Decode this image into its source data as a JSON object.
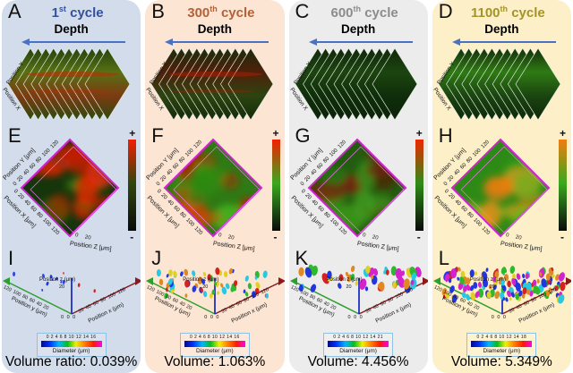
{
  "shared": {
    "axis_colors": {
      "y": "#2e9e2e",
      "x": "#8b1a1a",
      "z": "#2030c0"
    },
    "legend_gradient": [
      "#000a8c",
      "#0030ff",
      "#00b4ff",
      "#00c020",
      "#f0f000",
      "#ff8000",
      "#ff1800",
      "#ff00ff"
    ],
    "depth_arrow_color": "#4a72c4"
  },
  "columns": [
    {
      "bg": "#d3dcea",
      "letters": {
        "top": "A",
        "mid": "E",
        "bottom": "I"
      },
      "title": {
        "num": "1",
        "sup": "st",
        "rest": " cycle",
        "color": "#33519b"
      },
      "row1": {
        "depth_label": "Depth",
        "pos_y_label": "Position Y",
        "pos_x_label": "Position X",
        "slice_count": 11,
        "slice_stops": [
          "#26420f",
          "#577114",
          "#7d3a12",
          "#2c4a10"
        ],
        "streak": "#cc2200"
      },
      "row2": {
        "y_label": "Position Y [μm]",
        "x_label": "Position X [μm]",
        "z_label": "Position Z [μm]",
        "xy_ticks": "0 20 40 60 80 100 120",
        "z_ticks": "0 20",
        "base": "#15350b",
        "blob_palette": [
          "#e82400",
          "#c41f00",
          "#1d5c0e",
          "#3a7a14",
          "#e83010"
        ],
        "blob_count": 15,
        "blob_seed": 5,
        "outline": "#d024d0",
        "colorbar": {
          "plus": "+",
          "minus": "-",
          "top": "#f22000",
          "mid": "#31460f",
          "bottom": "#0a0a0a"
        }
      },
      "row3": {
        "y_label": "Position y (μm)",
        "x_label": "Position x (μm)",
        "z_label": "Position z (μm)",
        "y_ticks": "120 100 80 60 40 20",
        "x_ticks": "20 40 60 80 100 120",
        "z_tick": "20",
        "origin": "0 0 0",
        "particles": {
          "count": 13,
          "palette": [
            "#2236e0",
            "#2236e0",
            "#2a44e8",
            "#d42222"
          ],
          "min_size": 1.2,
          "max_size": 2.6,
          "y_min": 16,
          "y_max": 38,
          "seed": 7
        },
        "legend": {
          "ticks": "0 2 4 6 8 10 12 14 16",
          "label": "Diameter (μm)"
        },
        "volume": "Volume ratio: 0.039%"
      }
    },
    {
      "bg": "#fce5d3",
      "letters": {
        "top": "B",
        "mid": "F",
        "bottom": "J"
      },
      "title": {
        "num": "300",
        "sup": "th",
        "rest": " cycle",
        "color": "#b4613a"
      },
      "row1": {
        "depth_label": "Depth",
        "pos_y_label": "Position Y",
        "pos_x_label": "Position X",
        "slice_count": 11,
        "slice_stops": [
          "#1c2c0c",
          "#50200a",
          "#2c4410",
          "#152a0a"
        ],
        "streak": "#b81a00"
      },
      "row2": {
        "y_label": "Position Y [μm]",
        "x_label": "Position X [μm]",
        "z_label": "Position Z [μm]",
        "xy_ticks": "0 20 40 60 80 100 120",
        "z_ticks": "0 20",
        "base": "#2e7a14",
        "blob_palette": [
          "#c81800",
          "#e04400",
          "#46b81e",
          "#2e8c12",
          "#a81400"
        ],
        "blob_count": 17,
        "blob_seed": 13,
        "outline": "#d024d0",
        "colorbar": {
          "plus": "+",
          "minus": "-",
          "top": "#f22000",
          "mid": "#3aa81e",
          "bottom": "#0a0a0a"
        }
      },
      "row3": {
        "y_label": "Position y (μm)",
        "x_label": "Position x (μm)",
        "z_label": "Position z (μm)",
        "y_ticks": "120 100 80 60 40 20",
        "x_ticks": "20 40 60 80 100 120",
        "z_tick": "20",
        "origin": "0 0 0",
        "particles": {
          "count": 60,
          "palette": [
            "#2236e0",
            "#d42222",
            "#28c8e0",
            "#e0d022",
            "#2eb82e",
            "#e08822"
          ],
          "min_size": 2,
          "max_size": 4.5,
          "y_min": 14,
          "y_max": 42,
          "seed": 11
        },
        "legend": {
          "ticks": "0 2 4 6 8 10 12 14 16",
          "label": "Diameter (μm)"
        },
        "volume": "Volume: 1.063%"
      }
    },
    {
      "bg": "#ececec",
      "letters": {
        "top": "C",
        "mid": "G",
        "bottom": "K"
      },
      "title": {
        "num": "600",
        "sup": "th",
        "rest": " cycle",
        "color": "#8c8c8c"
      },
      "row1": {
        "depth_label": "Depth",
        "pos_y_label": "Position Y",
        "pos_x_label": "Position X",
        "slice_count": 11,
        "slice_stops": [
          "#10280a",
          "#1d4410",
          "#0f2e0a",
          "#0c2208"
        ],
        "streak": ""
      },
      "row2": {
        "y_label": "Position Y [μm]",
        "x_label": "Position X [μm]",
        "z_label": "Position Z [μm]",
        "xy_ticks": "0 20 40 60 80 100 120",
        "z_ticks": "0 20",
        "base": "#235c10",
        "blob_palette": [
          "#5c1608",
          "#3f9a1c",
          "#7a220c",
          "#2e7a14",
          "#451208"
        ],
        "blob_count": 15,
        "blob_seed": 21,
        "outline": "#d024d0",
        "colorbar": {
          "plus": "+",
          "minus": "-",
          "top": "#ee2800",
          "mid": "#2f8c18",
          "bottom": "#0a0a0a"
        }
      },
      "row3": {
        "y_label": "Position y (μm)",
        "x_label": "Position x (μm)",
        "z_label": "Position z (μm)",
        "y_ticks": "120 100 80 60 40 20",
        "x_ticks": "20 40 60 80 100 120",
        "z_tick": "20",
        "origin": "0 0 0",
        "particles": {
          "count": 52,
          "palette": [
            "#e08822",
            "#d422cc",
            "#2eb82e",
            "#e0d022",
            "#2236e0",
            "#d42222",
            "#28c8e0"
          ],
          "min_size": 2.5,
          "max_size": 6.5,
          "y_min": 10,
          "y_max": 34,
          "seed": 23
        },
        "legend": {
          "ticks": "0 2 4 6 8 10 12 14 21",
          "label": "Diameter (μm)"
        },
        "volume": "Volume: 4.456%"
      }
    },
    {
      "bg": "#fdefc8",
      "letters": {
        "top": "D",
        "mid": "H",
        "bottom": "L"
      },
      "title": {
        "num": "1100",
        "sup": "th",
        "rest": " cycle",
        "color": "#a39428"
      },
      "row1": {
        "depth_label": "Depth",
        "pos_y_label": "Position Y",
        "pos_x_label": "Position X",
        "slice_count": 11,
        "slice_stops": [
          "#143009",
          "#2f7a14",
          "#1a4410",
          "#0f2808"
        ],
        "streak": ""
      },
      "row2": {
        "y_label": "Position Y [μm]",
        "x_label": "Position X [μm]",
        "z_label": "Position Z [μm]",
        "xy_ticks": "0 20 40 60 80 100 120",
        "z_ticks": "0 20",
        "base": "#2e8a16",
        "blob_palette": [
          "#f07c10",
          "#e89018",
          "#46c01e",
          "#2e9a14",
          "#ff9820"
        ],
        "blob_count": 16,
        "blob_seed": 31,
        "outline": "#d024d0",
        "colorbar": {
          "plus": "+",
          "minus": "-",
          "top": "#f07c10",
          "mid": "#3aa81e",
          "bottom": "#0a0a0a"
        }
      },
      "row3": {
        "y_label": "Position y (μm)",
        "x_label": "Position x (μm)",
        "z_label": "Position z (μm)",
        "y_ticks": "120 100 80 60 40 20",
        "x_ticks": "20 40 60 80 100 120",
        "z_tick": "20",
        "origin": "0 0 0",
        "particles": {
          "count": 130,
          "palette": [
            "#2eb82e",
            "#d422cc",
            "#e0d022",
            "#d42222",
            "#2236e0",
            "#28c8e0",
            "#e08822"
          ],
          "min_size": 2,
          "max_size": 5.5,
          "y_min": 12,
          "y_max": 46,
          "seed": 42
        },
        "legend": {
          "ticks": "0 2 4 6 8 10 12 14 18",
          "label": "Diameter (μm)"
        },
        "volume": "Volume: 5.349%"
      }
    }
  ]
}
